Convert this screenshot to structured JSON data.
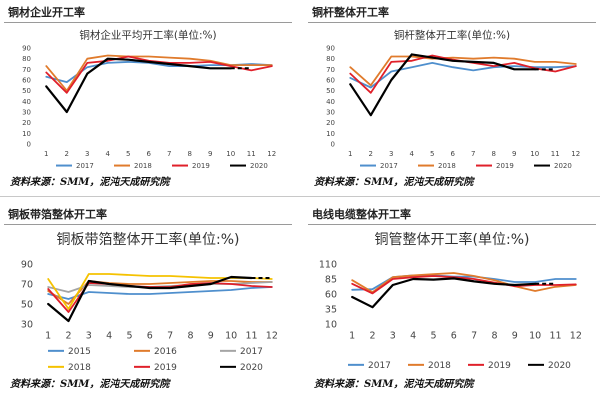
{
  "colors": {
    "2015": "#4f8fcd",
    "2016": "#e07b2c",
    "2017": "#a5a5a5",
    "2018": "#f5c200",
    "2019": "#e0202a",
    "2020": "#000000"
  },
  "panels": [
    {
      "header": "铜材企业开工率",
      "source": "资料来源：SMM，泥沌天成研究院"
    },
    {
      "header": "铜杆整体开工率",
      "source": "资料来源：SMM，泥沌天成研究院"
    },
    {
      "header": "铜板带箔整体开工率",
      "source": "资料来源：SMM，泥沌天成研究院"
    },
    {
      "header": "电线电缆整体开工率",
      "source": "资料来源：SMM，泥沌天成研究院"
    }
  ],
  "chart_data": [
    {
      "type": "line",
      "title": "铜材企业平均开工率(单位:%)",
      "xlabel": "",
      "ylabel": "",
      "x": [
        1,
        2,
        3,
        4,
        5,
        6,
        7,
        8,
        9,
        10,
        11,
        12
      ],
      "ylim": [
        0,
        90
      ],
      "yticks": [
        0,
        10,
        20,
        30,
        40,
        50,
        60,
        70,
        80,
        90
      ],
      "series": [
        {
          "name": "2017",
          "color": "#4f8fcd",
          "values": [
            63,
            58,
            72,
            76,
            77,
            76,
            73,
            73,
            74,
            74,
            75,
            74
          ]
        },
        {
          "name": "2018",
          "color": "#e07b2c",
          "values": [
            73,
            50,
            80,
            83,
            82,
            82,
            81,
            80,
            78,
            74,
            74,
            74
          ]
        },
        {
          "name": "2019",
          "color": "#e0202a",
          "values": [
            67,
            48,
            76,
            78,
            82,
            78,
            76,
            76,
            77,
            73,
            69,
            73
          ]
        },
        {
          "name": "2020",
          "color": "#000000",
          "values": [
            54,
            30,
            66,
            80,
            79,
            77,
            75,
            73,
            71,
            71,
            null,
            null
          ]
        }
      ]
    },
    {
      "type": "line",
      "title": "铜杆整体开工率(单位:%)",
      "xlabel": "",
      "ylabel": "",
      "x": [
        1,
        2,
        3,
        4,
        5,
        6,
        7,
        8,
        9,
        10,
        11,
        12
      ],
      "ylim": [
        0,
        90
      ],
      "yticks": [
        0,
        10,
        20,
        30,
        40,
        50,
        60,
        70,
        80,
        90
      ],
      "series": [
        {
          "name": "2017",
          "color": "#4f8fcd",
          "values": [
            62,
            53,
            68,
            72,
            76,
            72,
            69,
            72,
            73,
            72,
            72,
            73
          ]
        },
        {
          "name": "2018",
          "color": "#e07b2c",
          "values": [
            72,
            55,
            82,
            82,
            80,
            81,
            80,
            81,
            80,
            77,
            77,
            75
          ]
        },
        {
          "name": "2019",
          "color": "#e0202a",
          "values": [
            66,
            48,
            77,
            78,
            83,
            79,
            76,
            73,
            76,
            71,
            68,
            73
          ]
        },
        {
          "name": "2020",
          "color": "#000000",
          "values": [
            56,
            27,
            60,
            84,
            81,
            78,
            77,
            76,
            70,
            70,
            null,
            null
          ]
        }
      ]
    },
    {
      "type": "line",
      "title": "铜板带箔整体开工率(单位:%)",
      "xlabel": "",
      "ylabel": "",
      "x": [
        1,
        2,
        3,
        4,
        5,
        6,
        7,
        8,
        9,
        10,
        11,
        12
      ],
      "ylim": [
        30,
        90
      ],
      "yticks": [
        30,
        50,
        70,
        90
      ],
      "series": [
        {
          "name": "2015",
          "color": "#4f8fcd",
          "values": [
            60,
            55,
            62,
            61,
            60,
            60,
            61,
            62,
            63,
            64,
            66,
            67
          ]
        },
        {
          "name": "2016",
          "color": "#e07b2c",
          "values": [
            63,
            50,
            73,
            71,
            70,
            70,
            71,
            72,
            73,
            73,
            72,
            72
          ]
        },
        {
          "name": "2017",
          "color": "#a5a5a5",
          "values": [
            67,
            62,
            69,
            68,
            67,
            67,
            68,
            69,
            70,
            70,
            71,
            72
          ]
        },
        {
          "name": "2018",
          "color": "#f5c200",
          "values": [
            75,
            45,
            80,
            80,
            79,
            78,
            78,
            77,
            76,
            76,
            76,
            75
          ]
        },
        {
          "name": "2019",
          "color": "#e0202a",
          "values": [
            65,
            42,
            71,
            70,
            68,
            67,
            67,
            70,
            71,
            70,
            68,
            67
          ]
        },
        {
          "name": "2020",
          "color": "#000000",
          "values": [
            50,
            33,
            73,
            70,
            68,
            66,
            66,
            68,
            70,
            77,
            76,
            null
          ]
        }
      ]
    },
    {
      "type": "line",
      "title": "铜管整体开工率(单位:%)",
      "xlabel": "",
      "ylabel": "",
      "x": [
        1,
        2,
        3,
        4,
        5,
        6,
        7,
        8,
        9,
        10,
        11,
        12
      ],
      "ylim": [
        10,
        110
      ],
      "yticks": [
        10,
        35,
        60,
        85,
        110
      ],
      "series": [
        {
          "name": "2017",
          "color": "#4f8fcd",
          "values": [
            67,
            68,
            88,
            91,
            91,
            89,
            89,
            85,
            80,
            80,
            85,
            85
          ]
        },
        {
          "name": "2018",
          "color": "#e07b2c",
          "values": [
            83,
            63,
            88,
            91,
            93,
            95,
            90,
            83,
            73,
            65,
            72,
            75
          ]
        },
        {
          "name": "2019",
          "color": "#e0202a",
          "values": [
            77,
            61,
            85,
            88,
            90,
            88,
            85,
            79,
            73,
            75,
            75,
            76
          ]
        },
        {
          "name": "2020",
          "color": "#000000",
          "values": [
            55,
            38,
            75,
            85,
            84,
            86,
            81,
            77,
            75,
            77,
            null,
            null
          ]
        }
      ]
    }
  ]
}
